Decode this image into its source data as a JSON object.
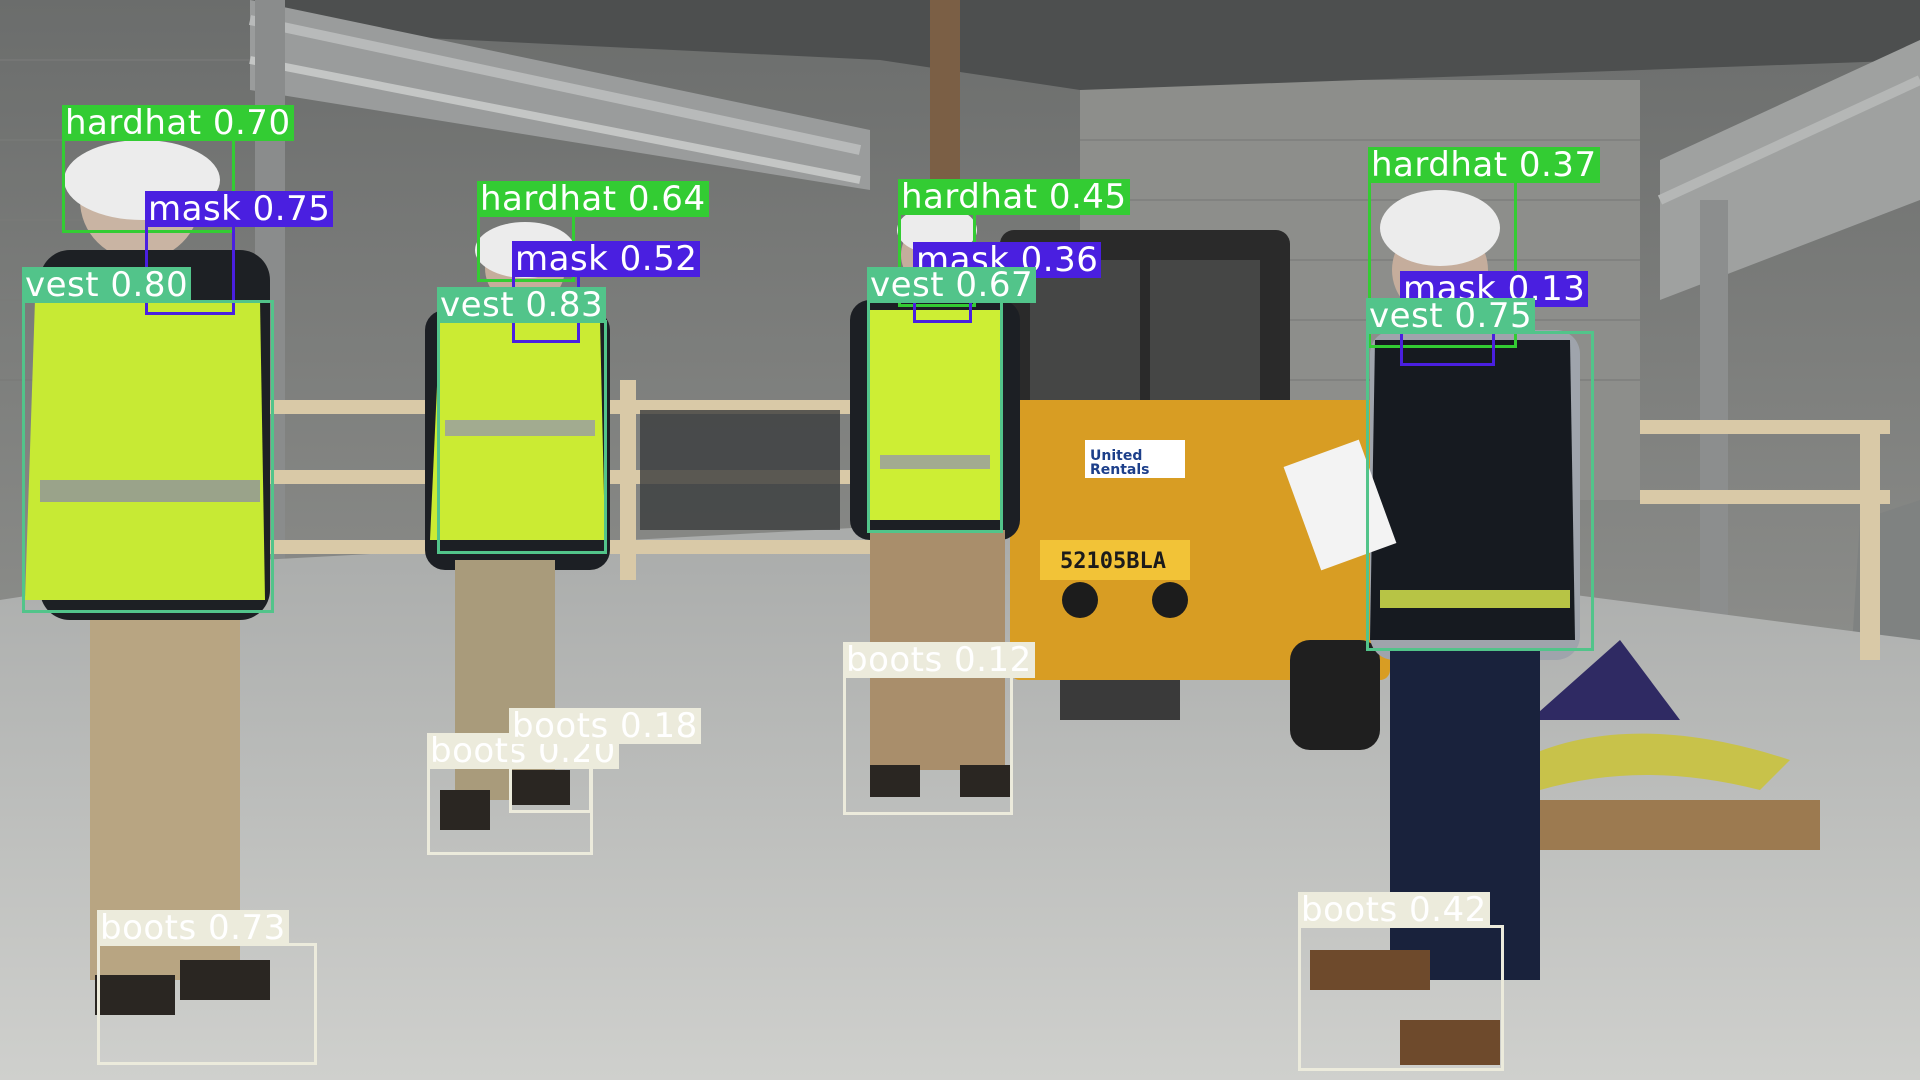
{
  "image": {
    "description_free": true,
    "class_colors": {
      "hardhat": "#33cc33",
      "mask": "#4a1fe0",
      "vest": "#52c48a",
      "boots": "#ecebdc"
    },
    "label_text_colors": {
      "hardhat": "#ffffff",
      "mask": "#ffffff",
      "vest": "#ffffff",
      "boots": "#ffffff"
    }
  },
  "detections": [
    {
      "label": "hardhat 0.70",
      "cls": "hardhat",
      "score": 0.7
    },
    {
      "label": "mask 0.75",
      "cls": "mask",
      "score": 0.75
    },
    {
      "label": "vest 0.80",
      "cls": "vest",
      "score": 0.8
    },
    {
      "label": "hardhat 0.64",
      "cls": "hardhat",
      "score": 0.64
    },
    {
      "label": "mask 0.52",
      "cls": "mask",
      "score": 0.52
    },
    {
      "label": "vest 0.83",
      "cls": "vest",
      "score": 0.83
    },
    {
      "label": "hardhat 0.45",
      "cls": "hardhat",
      "score": 0.45
    },
    {
      "label": "mask 0.36",
      "cls": "mask",
      "score": 0.36
    },
    {
      "label": "vest 0.67",
      "cls": "vest",
      "score": 0.67
    },
    {
      "label": "hardhat 0.37",
      "cls": "hardhat",
      "score": 0.37
    },
    {
      "label": "mask 0.13",
      "cls": "mask",
      "score": 0.13
    },
    {
      "label": "vest 0.75",
      "cls": "vest",
      "score": 0.75
    },
    {
      "label": "boots 0.73",
      "cls": "boots",
      "score": 0.73
    },
    {
      "label": "boots 0.20",
      "cls": "boots",
      "score": 0.2
    },
    {
      "label": "boots 0.18",
      "cls": "boots",
      "score": 0.18
    },
    {
      "label": "boots 0.12",
      "cls": "boots",
      "score": 0.12
    },
    {
      "label": "boots 0.42",
      "cls": "boots",
      "score": 0.42
    }
  ],
  "loader": {
    "brand": "United Rentals",
    "plate": "52105BLA"
  }
}
